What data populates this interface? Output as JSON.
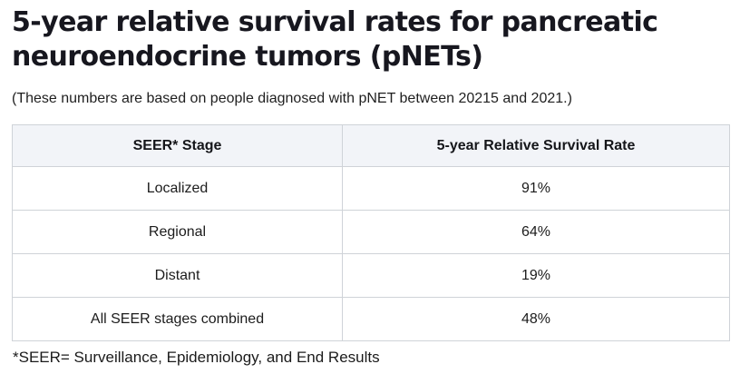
{
  "page": {
    "title_line1": "5-year relative survival rates for pancreatic",
    "title_line2": "neuroendocrine tumors (pNETs)",
    "subtitle": "(These numbers are based on people diagnosed with pNET between 20215 and 2021.)",
    "footnote": "*SEER= Surveillance, Epidemiology, and End Results"
  },
  "table": {
    "columns": {
      "stage": "SEER* Stage",
      "rate": "5-year Relative Survival Rate"
    },
    "rows": [
      {
        "stage": "Localized",
        "rate": "91%"
      },
      {
        "stage": "Regional",
        "rate": "64%"
      },
      {
        "stage": "Distant",
        "rate": "19%"
      },
      {
        "stage": "All SEER stages combined",
        "rate": "48%"
      }
    ]
  },
  "colors": {
    "heading_text": "#17171f",
    "body_text": "#1c1c1c",
    "table_header_bg": "#f2f4f8",
    "table_border": "#cfd3d8"
  }
}
